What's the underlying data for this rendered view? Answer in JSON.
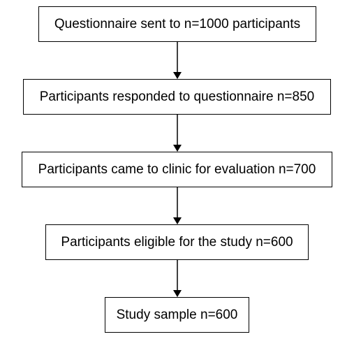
{
  "flowchart": {
    "steps": [
      {
        "label": "Questionnaire sent to n=1000 participants"
      },
      {
        "label": "Participants responded to questionnaire n=850"
      },
      {
        "label": "Participants came to clinic for evaluation n=700"
      },
      {
        "label": "Participants eligible for the study n=600"
      },
      {
        "label": "Study sample n=600"
      }
    ],
    "colors": {
      "stroke": "#000000",
      "background": "#ffffff",
      "text": "#000000"
    }
  }
}
